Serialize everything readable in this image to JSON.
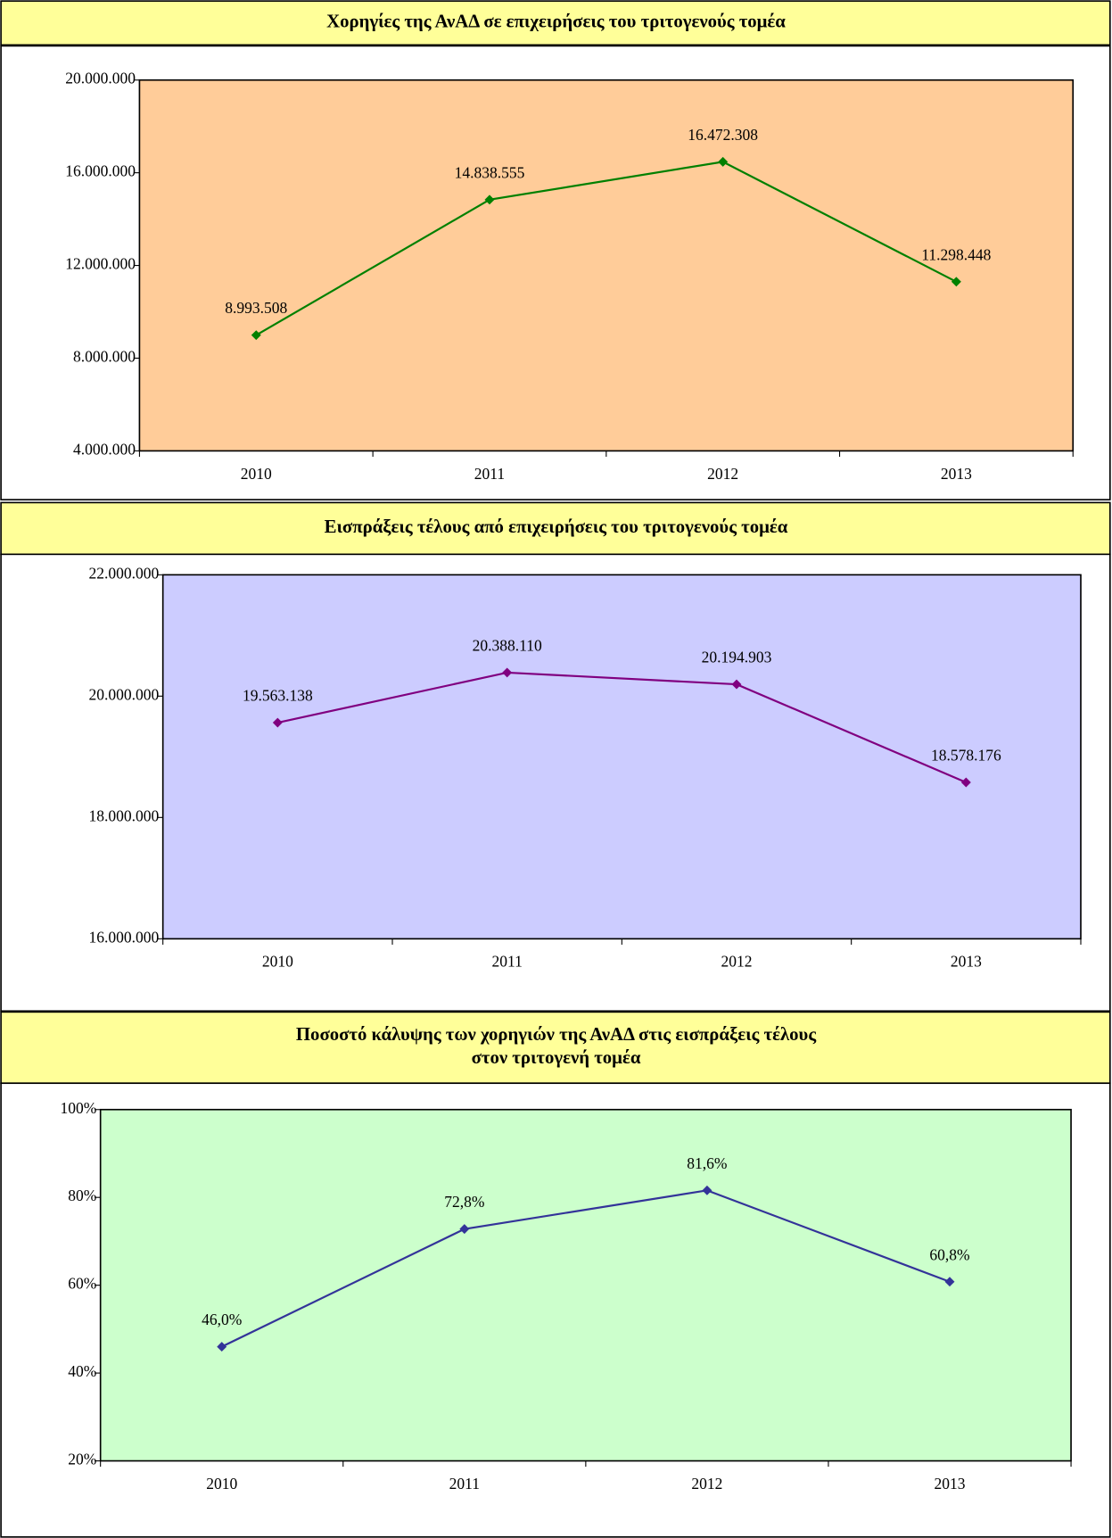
{
  "chart_data": [
    {
      "type": "line",
      "title": "Χορηγίες της ΑνΑΔ σε επιχειρήσεις του τριτογενούς τομέα",
      "categories": [
        "2010",
        "2011",
        "2012",
        "2013"
      ],
      "values": [
        8993508,
        14838555,
        16472308,
        11298448
      ],
      "value_labels": [
        "8.993.508",
        "14.838.555",
        "16.472.308",
        "11.298.448"
      ],
      "color": "#008000",
      "plot_color": "#ffcc99",
      "ylim": [
        4000000,
        20000000
      ],
      "yticks": [
        {
          "value": 4000000,
          "label": "4.000.000"
        },
        {
          "value": 8000000,
          "label": "8.000.000"
        },
        {
          "value": 12000000,
          "label": "12.000.000"
        },
        {
          "value": 16000000,
          "label": "16.000.000"
        },
        {
          "value": 20000000,
          "label": "20.000.000"
        }
      ]
    },
    {
      "type": "line",
      "title": "Εισπράξεις τέλους από επιχειρήσεις του τριτογενούς τομέα",
      "categories": [
        "2010",
        "2011",
        "2012",
        "2013"
      ],
      "values": [
        19563138,
        20388110,
        20194903,
        18578176
      ],
      "value_labels": [
        "19.563.138",
        "20.388.110",
        "20.194.903",
        "18.578.176"
      ],
      "color": "#800080",
      "plot_color": "#ccccff",
      "ylim": [
        16000000,
        22000000
      ],
      "yticks": [
        {
          "value": 16000000,
          "label": "16.000.000"
        },
        {
          "value": 18000000,
          "label": "18.000.000"
        },
        {
          "value": 20000000,
          "label": "20.000.000"
        },
        {
          "value": 22000000,
          "label": "22.000.000"
        }
      ]
    },
    {
      "type": "line",
      "title": [
        "Ποσοστό κάλυψης των χορηγιών της ΑνΑΔ στις εισπράξεις τέλους",
        "στον τριτογενή τομέα"
      ],
      "categories": [
        "2010",
        "2011",
        "2012",
        "2013"
      ],
      "values": [
        46.0,
        72.8,
        81.6,
        60.8
      ],
      "value_labels": [
        "46,0%",
        "72,8%",
        "81,6%",
        "60,8%"
      ],
      "color": "#333399",
      "plot_color": "#ccffcc",
      "ylim": [
        20,
        100
      ],
      "yticks": [
        {
          "value": 20,
          "label": "20%"
        },
        {
          "value": 40,
          "label": "40%"
        },
        {
          "value": 60,
          "label": "60%"
        },
        {
          "value": 80,
          "label": "80%"
        },
        {
          "value": 100,
          "label": "100%"
        }
      ]
    }
  ]
}
